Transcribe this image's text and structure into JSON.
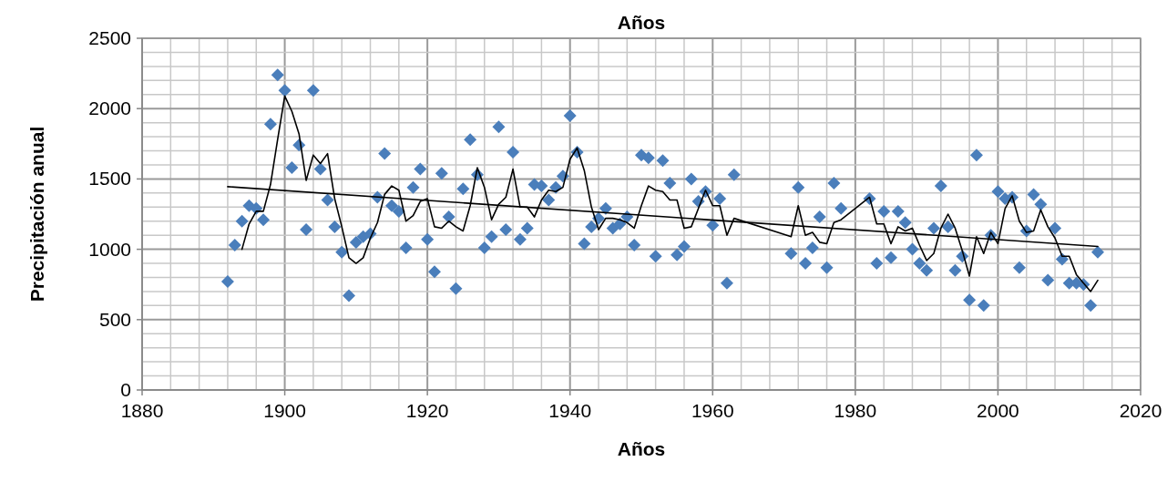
{
  "chart_data": {
    "type": "scatter",
    "title": "Años",
    "xlabel": "Años",
    "ylabel": "Precipitación anual",
    "xlim": [
      1880,
      2020
    ],
    "xticks": [
      1880,
      {
        "value": 1884,
        "label": null
      },
      {
        "value": 1888,
        "label": null
      },
      {
        "value": 1892,
        "label": null
      },
      {
        "value": 1896,
        "label": null
      },
      1900,
      {
        "value": 1904,
        "label": null
      },
      {
        "value": 1908,
        "label": null
      },
      {
        "value": 1912,
        "label": null
      },
      {
        "value": 1916,
        "label": null
      },
      1920,
      {
        "value": 1924,
        "label": null
      },
      {
        "value": 1928,
        "label": null
      },
      {
        "value": 1932,
        "label": null
      },
      {
        "value": 1936,
        "label": null
      },
      1940,
      {
        "value": 1944,
        "label": null
      },
      {
        "value": 1948,
        "label": null
      },
      {
        "value": 1952,
        "label": null
      },
      {
        "value": 1956,
        "label": null
      },
      1960,
      {
        "value": 1964,
        "label": null
      },
      {
        "value": 1968,
        "label": null
      },
      {
        "value": 1972,
        "label": null
      },
      {
        "value": 1976,
        "label": null
      },
      1980,
      {
        "value": 1984,
        "label": null
      },
      {
        "value": 1988,
        "label": null
      },
      {
        "value": 1992,
        "label": null
      },
      {
        "value": 1996,
        "label": null
      },
      2000,
      {
        "value": 2004,
        "label": null
      },
      {
        "value": 2008,
        "label": null
      },
      {
        "value": 2012,
        "label": null
      },
      {
        "value": 2016,
        "label": null
      },
      2020
    ],
    "ylim": [
      0,
      2500
    ],
    "yticks": [
      0,
      {
        "value": 100,
        "label": null
      },
      {
        "value": 200,
        "label": null
      },
      {
        "value": 300,
        "label": null
      },
      {
        "value": 400,
        "label": null
      },
      500,
      {
        "value": 600,
        "label": null
      },
      {
        "value": 700,
        "label": null
      },
      {
        "value": 800,
        "label": null
      },
      {
        "value": 900,
        "label": null
      },
      1000,
      {
        "value": 1100,
        "label": null
      },
      {
        "value": 1200,
        "label": null
      },
      {
        "value": 1300,
        "label": null
      },
      {
        "value": 1400,
        "label": null
      },
      1500,
      {
        "value": 1600,
        "label": null
      },
      {
        "value": 1700,
        "label": null
      },
      {
        "value": 1800,
        "label": null
      },
      {
        "value": 1900,
        "label": null
      },
      2000,
      {
        "value": 2100,
        "label": null
      },
      {
        "value": 2200,
        "label": null
      },
      {
        "value": 2300,
        "label": null
      },
      {
        "value": 2400,
        "label": null
      },
      2500
    ],
    "grid": true,
    "series": [
      {
        "color": "#4a7ebb",
        "marker": "diamond",
        "x": [
          1892,
          1893,
          1894,
          1895,
          1896,
          1897,
          1898,
          1899,
          1900,
          1901,
          1902,
          1903,
          1904,
          1905,
          1906,
          1907,
          1908,
          1909,
          1910,
          1911,
          1912,
          1913,
          1914,
          1915,
          1916,
          1917,
          1918,
          1919,
          1920,
          1921,
          1922,
          1923,
          1924,
          1925,
          1926,
          1927,
          1928,
          1929,
          1930,
          1931,
          1932,
          1933,
          1934,
          1935,
          1936,
          1937,
          1938,
          1939,
          1940,
          1941,
          1942,
          1943,
          1944,
          1945,
          1946,
          1947,
          1948,
          1949,
          1950,
          1951,
          1952,
          1953,
          1954,
          1955,
          1956,
          1957,
          1958,
          1959,
          1960,
          1961,
          1962,
          1963,
          1971,
          1972,
          1973,
          1974,
          1975,
          1976,
          1977,
          1978,
          1982,
          1983,
          1984,
          1985,
          1986,
          1987,
          1988,
          1989,
          1990,
          1991,
          1992,
          1993,
          1994,
          1995,
          1996,
          1997,
          1998,
          1999,
          2000,
          2001,
          2002,
          2003,
          2004,
          2005,
          2006,
          2007,
          2008,
          2009,
          2010,
          2011,
          2012,
          2013,
          2014
        ],
        "values": [
          770,
          1030,
          1200,
          1310,
          1290,
          1210,
          1890,
          2240,
          2130,
          1580,
          1740,
          1140,
          2130,
          1570,
          1350,
          1160,
          980,
          670,
          1050,
          1090,
          1110,
          1370,
          1680,
          1310,
          1270,
          1010,
          1440,
          1570,
          1070,
          840,
          1540,
          1230,
          720,
          1430,
          1780,
          1530,
          1010,
          1090,
          1870,
          1140,
          1690,
          1070,
          1150,
          1460,
          1450,
          1350,
          1440,
          1520,
          1950,
          1690,
          1040,
          1160,
          1220,
          1290,
          1150,
          1180,
          1230,
          1030,
          1670,
          1650,
          950,
          1630,
          1470,
          960,
          1020,
          1500,
          1340,
          1410,
          1170,
          1360,
          760,
          1530,
          970,
          1440,
          900,
          1010,
          1230,
          870,
          1470,
          1290,
          1360,
          900,
          1270,
          940,
          1270,
          1190,
          1000,
          900,
          850,
          1150,
          1450,
          1160,
          850,
          950,
          640,
          1670,
          600,
          1100,
          1410,
          1360,
          1370,
          870,
          1130,
          1390,
          1320,
          780,
          1150,
          930,
          760,
          760,
          750,
          600,
          980
        ]
      },
      {
        "type": "line",
        "color": "#000000",
        "marker": "none",
        "line_style": "solid",
        "x": [
          1894,
          1895,
          1896,
          1897,
          1898,
          1899,
          1900,
          1901,
          1902,
          1903,
          1904,
          1905,
          1906,
          1907,
          1908,
          1909,
          1910,
          1911,
          1912,
          1913,
          1914,
          1915,
          1916,
          1917,
          1918,
          1919,
          1920,
          1921,
          1922,
          1923,
          1924,
          1925,
          1926,
          1927,
          1928,
          1929,
          1930,
          1931,
          1932,
          1933,
          1934,
          1935,
          1936,
          1937,
          1938,
          1939,
          1940,
          1941,
          1942,
          1943,
          1944,
          1945,
          1946,
          1947,
          1948,
          1949,
          1950,
          1951,
          1952,
          1953,
          1954,
          1955,
          1956,
          1957,
          1958,
          1959,
          1960,
          1961,
          1962,
          1963,
          1971,
          1972,
          1973,
          1974,
          1975,
          1976,
          1977,
          1978,
          1982,
          1983,
          1984,
          1985,
          1986,
          1987,
          1988,
          1989,
          1990,
          1991,
          1992,
          1993,
          1994,
          1995,
          1996,
          1997,
          1998,
          1999,
          2000,
          2001,
          2002,
          2003,
          2004,
          2005,
          2006,
          2007,
          2008,
          2009,
          2010,
          2011,
          2012,
          2013,
          2014
        ],
        "values": [
          1000,
          1180,
          1270,
          1270,
          1460,
          1780,
          2090,
          1980,
          1820,
          1490,
          1670,
          1610,
          1680,
          1360,
          1160,
          940,
          900,
          940,
          1080,
          1190,
          1390,
          1450,
          1420,
          1200,
          1240,
          1340,
          1360,
          1160,
          1150,
          1200,
          1160,
          1130,
          1310,
          1580,
          1440,
          1210,
          1320,
          1370,
          1570,
          1300,
          1300,
          1230,
          1350,
          1420,
          1410,
          1440,
          1640,
          1720,
          1560,
          1300,
          1140,
          1220,
          1220,
          1210,
          1190,
          1150,
          1310,
          1450,
          1420,
          1410,
          1350,
          1350,
          1150,
          1160,
          1290,
          1420,
          1310,
          1310,
          1100,
          1220,
          1090,
          1310,
          1100,
          1120,
          1050,
          1040,
          1190,
          1210,
          1370,
          1180,
          1180,
          1040,
          1160,
          1130,
          1150,
          1030,
          920,
          970,
          1150,
          1250,
          1150,
          990,
          810,
          1090,
          970,
          1120,
          1040,
          1290,
          1380,
          1200,
          1120,
          1130,
          1280,
          1160,
          1080,
          950,
          950,
          820,
          760,
          700,
          780
        ]
      },
      {
        "type": "line",
        "color": "#000000",
        "marker": "none",
        "line_style": "solid",
        "x": [
          1892,
          2014
        ],
        "values": [
          1445,
          1020
        ]
      }
    ]
  }
}
